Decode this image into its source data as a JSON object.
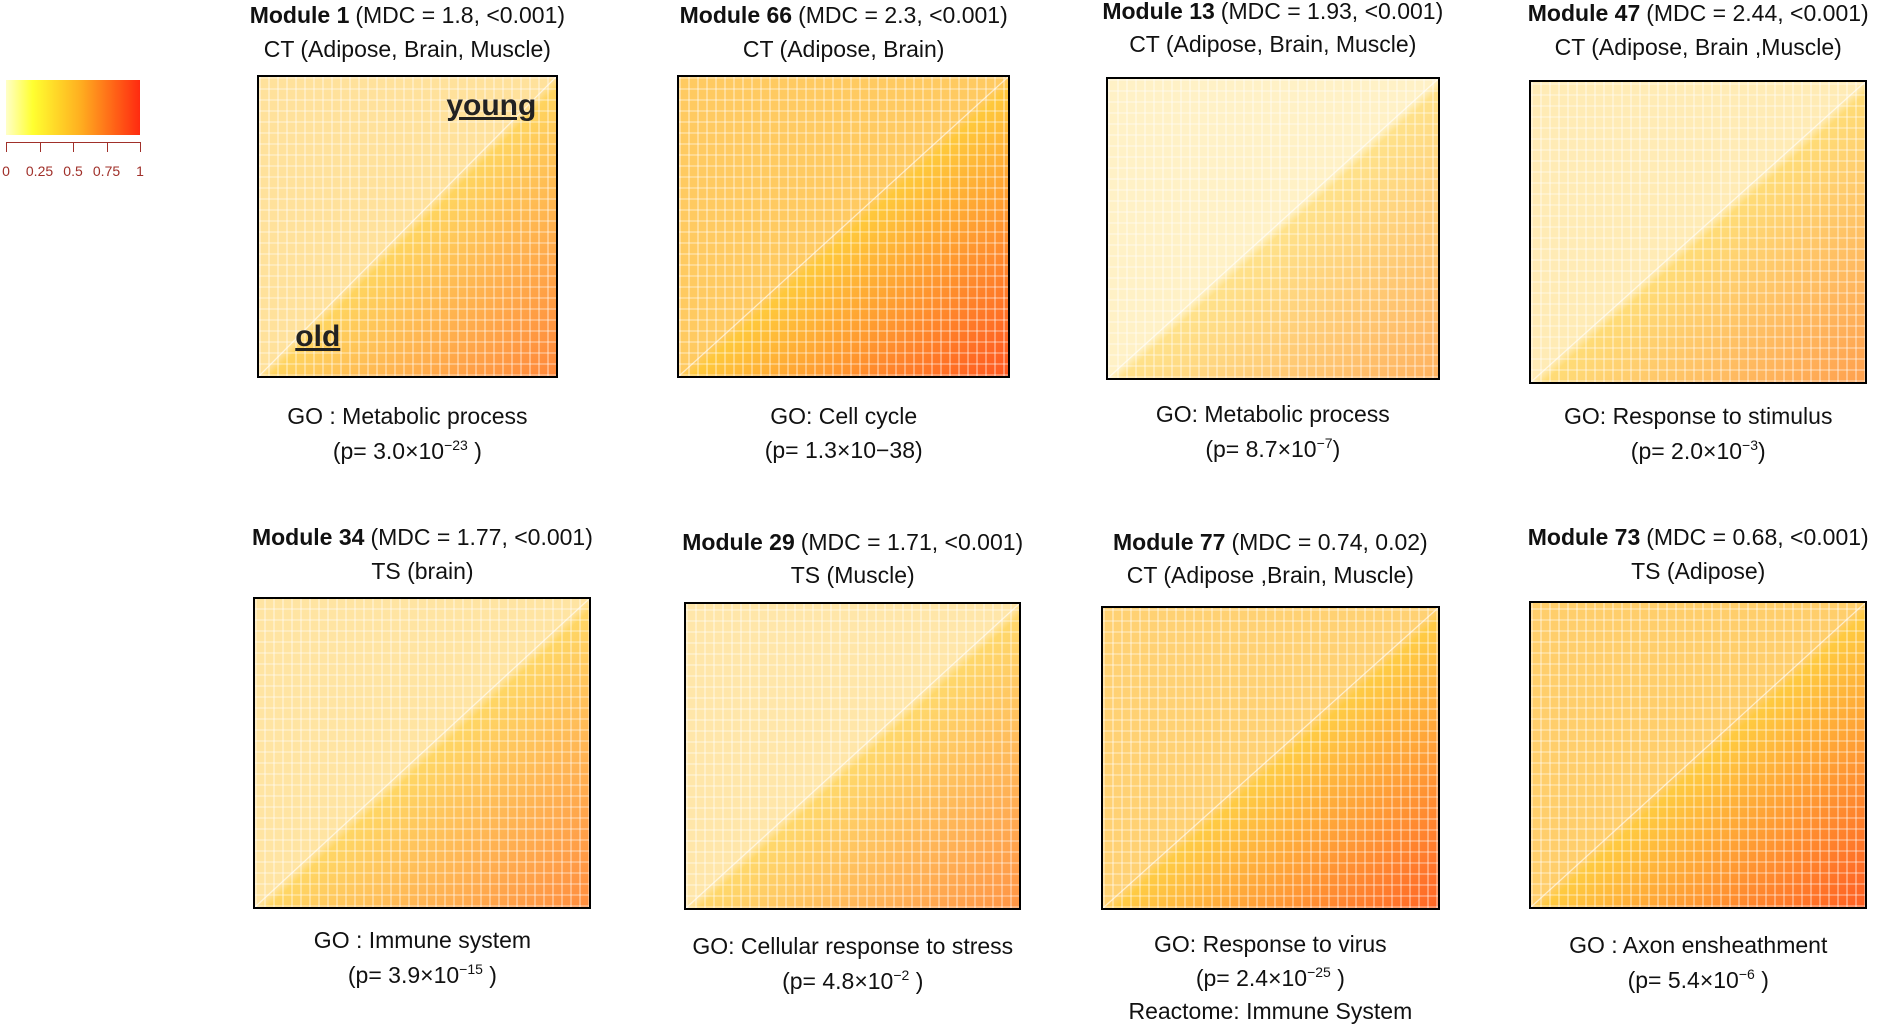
{
  "colorbar": {
    "ticks": [
      0,
      0.25,
      0.5,
      0.75,
      1
    ]
  },
  "panels": [
    {
      "module": "Module 1",
      "stats": "(MDC = 1.8, <0.001)",
      "tissue": "CT (Adipose, Brain, Muscle)",
      "annotation": "GO : Metabolic process",
      "p": "(p= 3.0×10",
      "p_exp": "−23",
      "p_end": " )",
      "young_label": "young",
      "old_label": "old"
    },
    {
      "module": "Module 66",
      "stats": "(MDC = 2.3, <0.001)",
      "tissue": "CT (Adipose, Brain)",
      "annotation": "GO: Cell cycle",
      "p": "(p= 1.3×10−38)"
    },
    {
      "module": "Module 13",
      "stats": "(MDC = 1.93, <0.001)",
      "tissue": "CT (Adipose, Brain, Muscle)",
      "annotation": "GO: Metabolic process",
      "p": "(p= 8.7×10",
      "p_exp": "−7",
      "p_end": ")"
    },
    {
      "module": "Module 47",
      "stats": "(MDC = 2.44, <0.001)",
      "tissue": "CT (Adipose, Brain ,Muscle)",
      "annotation": "GO: Response to stimulus",
      "p": "(p= 2.0×10",
      "p_exp": "−3",
      "p_end": ")"
    },
    {
      "module": "Module 34",
      "stats": "(MDC = 1.77, <0.001)",
      "tissue": "TS (brain)",
      "annotation": "GO : Immune system",
      "p": "(p= 3.9×10",
      "p_exp": "−15",
      "p_end": " )"
    },
    {
      "module": "Module 29",
      "stats": "(MDC = 1.71, <0.001)",
      "tissue": "TS (Muscle)",
      "annotation": "GO: Cellular response to stress",
      "p": "(p= 4.8×10",
      "p_exp": "−2",
      "p_end": " )"
    },
    {
      "module": "Module 77",
      "stats": "(MDC = 0.74, 0.02)",
      "tissue": "CT (Adipose ,Brain, Muscle)",
      "annotation": "GO: Response to virus",
      "p": "(p= 2.4×10",
      "p_exp": "−25",
      "p_end": " )",
      "extra": "Reactome: Immune System"
    },
    {
      "module": "Module 73",
      "stats": "(MDC = 0.68, <0.001)",
      "tissue": "TS (Adipose)",
      "annotation": "GO : Axon ensheathment",
      "p": "(p= 5.4×10",
      "p_exp": "−6",
      "p_end": " )"
    }
  ]
}
